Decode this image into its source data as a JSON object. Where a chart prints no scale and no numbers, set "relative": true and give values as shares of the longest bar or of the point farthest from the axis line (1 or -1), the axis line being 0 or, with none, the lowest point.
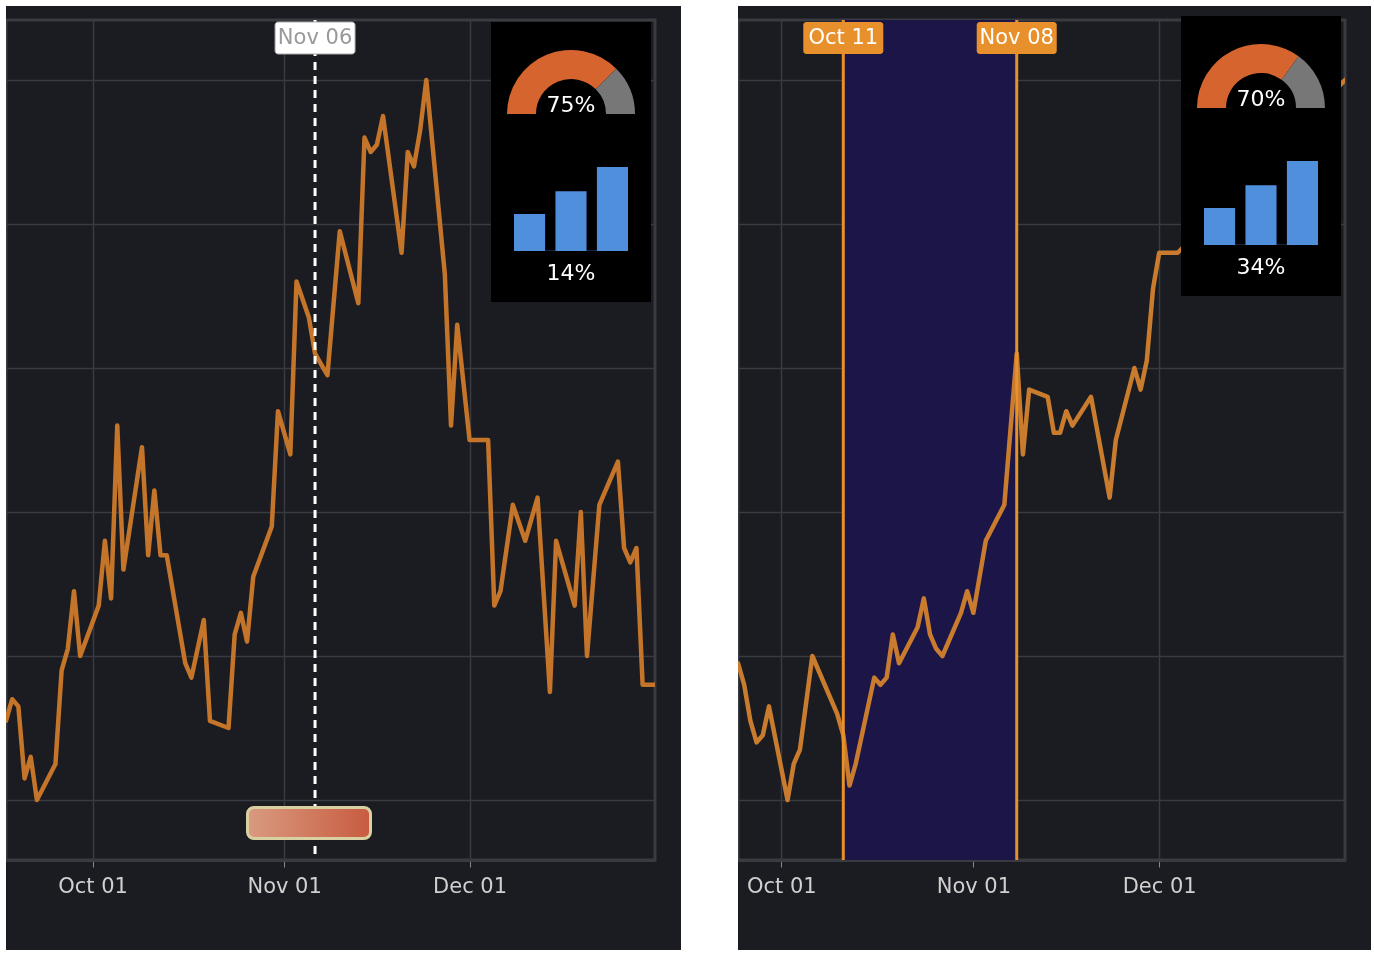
{
  "chart_data": [
    {
      "type": "line",
      "relative": true,
      "color": "#c4752a",
      "marker": "none",
      "line_style": "solid",
      "grid": true,
      "tick_labels": "x",
      "x": [
        "--09-17",
        "--09-18",
        "--09-19",
        "--09-20",
        "--09-21",
        "--09-22",
        "--09-25",
        "--09-26",
        "--09-27",
        "--09-28",
        "--09-29",
        "--10-02",
        "--10-03",
        "--10-04",
        "--10-05",
        "--10-06",
        "--10-09",
        "--10-10",
        "--10-11",
        "--10-12",
        "--10-13",
        "--10-16",
        "--10-17",
        "--10-19",
        "--10-20",
        "--10-23",
        "--10-24",
        "--10-25",
        "--10-26",
        "--10-27",
        "--10-30",
        "--10-31",
        "--11-02",
        "--11-03",
        "--11-05",
        "--11-06",
        "--11-08",
        "--11-10",
        "--11-13",
        "--11-14",
        "--11-15",
        "--11-16",
        "--11-17",
        "--11-20",
        "--11-21",
        "--11-22",
        "--11-23",
        "--11-24",
        "--11-27",
        "--11-28",
        "--11-29",
        "--12-01",
        "--12-04",
        "--12-05",
        "--12-06",
        "--12-08",
        "--12-10",
        "--12-12",
        "--12-14",
        "--12-15",
        "--12-18",
        "--12-19",
        "--12-20",
        "--12-22",
        "--12-25",
        "--12-26",
        "--12-27",
        "--12-28",
        "--12-29",
        "--12-31"
      ],
      "values": [
        0.11,
        0.14,
        0.13,
        0.03,
        0.06,
        0,
        0.05,
        0.18,
        0.21,
        0.29,
        0.2,
        0.27,
        0.36,
        0.28,
        0.52,
        0.32,
        0.49,
        0.34,
        0.43,
        0.34,
        0.34,
        0.19,
        0.17,
        0.25,
        0.11,
        0.1,
        0.23,
        0.26,
        0.22,
        0.31,
        0.38,
        0.54,
        0.48,
        0.72,
        0.67,
        0.62,
        0.59,
        0.79,
        0.69,
        0.92,
        0.9,
        0.91,
        0.95,
        0.76,
        0.9,
        0.88,
        0.93,
        1,
        0.73,
        0.52,
        0.66,
        0.5,
        0.5,
        0.27,
        0.29,
        0.41,
        0.36,
        0.42,
        0.15,
        0.36,
        0.27,
        0.4,
        0.2,
        0.41,
        0.47,
        0.35,
        0.33,
        0.35,
        0.16,
        0.16
      ],
      "xlim": [
        "--09-17",
        "--12-31"
      ],
      "xticks": [
        {
          "value": "--10-01",
          "label": "Oct 01"
        },
        {
          "value": "--11-01",
          "label": "Nov 01"
        },
        {
          "value": "--12-01",
          "label": "Dec 01"
        }
      ],
      "ref_lines": [
        {
          "axis": "x",
          "value": "--11-06",
          "label": "Nov 06",
          "color": "#ffffff",
          "line_style": "dashed"
        }
      ]
    },
    {
      "type": "donut",
      "categories": [
        null,
        null
      ],
      "values": [
        75,
        25
      ],
      "colors": [
        "#d6642f",
        "#777777"
      ],
      "annotations": [
        "75%"
      ]
    },
    {
      "type": "bar",
      "relative": true,
      "categories": [
        null,
        null,
        null
      ],
      "values": [
        0.44,
        0.71,
        1
      ],
      "color": "#4f8fdc",
      "annotations": [
        "14%"
      ]
    },
    {
      "type": "line",
      "relative": true,
      "color": "#c97c2e",
      "marker": "none",
      "line_style": "solid",
      "grid": true,
      "tick_labels": "x",
      "x": [
        "--09-24",
        "--09-25",
        "--09-26",
        "--09-27",
        "--09-28",
        "--09-29",
        "--10-02",
        "--10-03",
        "--10-04",
        "--10-06",
        "--10-10",
        "--10-11",
        "--10-12",
        "--10-13",
        "--10-16",
        "--10-17",
        "--10-18",
        "--10-19",
        "--10-20",
        "--10-23",
        "--10-24",
        "--10-25",
        "--10-26",
        "--10-27",
        "--10-30",
        "--10-31",
        "--11-01",
        "--11-03",
        "--11-06",
        "--11-08",
        "--11-09",
        "--11-10",
        "--11-13",
        "--11-14",
        "--11-15",
        "--11-16",
        "--11-17",
        "--11-20",
        "--11-23",
        "--11-24",
        "--11-27",
        "--11-28",
        "--11-29",
        "--11-30",
        "--12-01",
        "--12-04",
        "--12-31"
      ],
      "values": [
        0.19,
        0.16,
        0.11,
        0.08,
        0.09,
        0.13,
        0,
        0.05,
        0.07,
        0.2,
        0.12,
        0.09,
        0.02,
        0.05,
        0.17,
        0.16,
        0.17,
        0.23,
        0.19,
        0.24,
        0.28,
        0.23,
        0.21,
        0.2,
        0.26,
        0.29,
        0.26,
        0.36,
        0.41,
        0.62,
        0.48,
        0.57,
        0.56,
        0.51,
        0.51,
        0.54,
        0.52,
        0.56,
        0.42,
        0.5,
        0.6,
        0.57,
        0.61,
        0.71,
        0.76,
        0.76,
        1
      ],
      "xlim": [
        "--09-24",
        "--12-31"
      ],
      "xticks": [
        {
          "value": "--10-01",
          "label": "Oct 01"
        },
        {
          "value": "--11-01",
          "label": "Nov 01"
        },
        {
          "value": "--12-01",
          "label": "Dec 01"
        }
      ],
      "bands": [
        {
          "axis": "x",
          "from": "--10-11",
          "to": "--11-08",
          "color": "#1c1547"
        }
      ],
      "ref_lines": [
        {
          "axis": "x",
          "value": "--10-11",
          "label": "Oct 11",
          "color": "#e8902c",
          "line_style": "solid"
        },
        {
          "axis": "x",
          "value": "--11-08",
          "label": "Nov 08",
          "color": "#e8902c",
          "line_style": "solid"
        }
      ]
    },
    {
      "type": "donut",
      "categories": [
        null,
        null
      ],
      "values": [
        70,
        30
      ],
      "colors": [
        "#d6642f",
        "#777777"
      ],
      "annotations": [
        "70%"
      ]
    },
    {
      "type": "bar",
      "relative": true,
      "categories": [
        null,
        null,
        null
      ],
      "values": [
        0.44,
        0.71,
        1
      ],
      "color": "#4f8fdc",
      "annotations": [
        "34%"
      ]
    }
  ]
}
